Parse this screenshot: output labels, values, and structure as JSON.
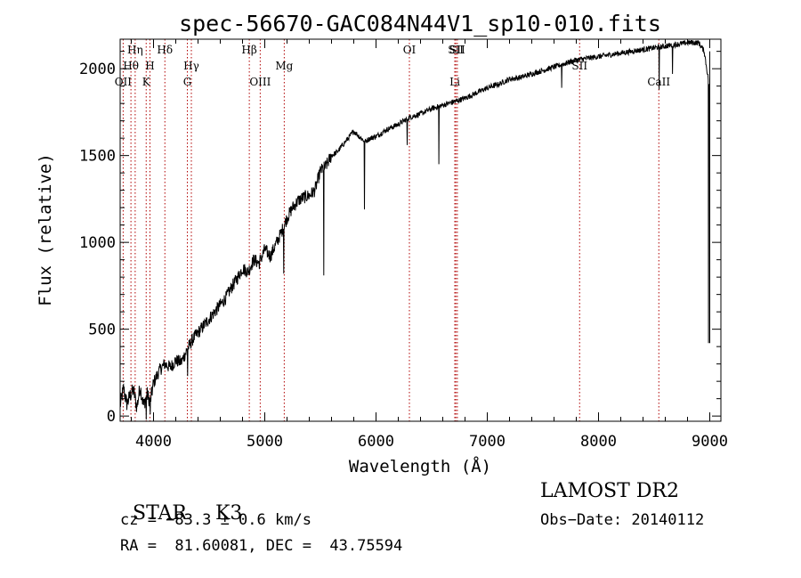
{
  "chart_data": {
    "type": "line",
    "title": "spec-56670-GAC084N44V1_sp10-010.fits",
    "xlabel": "Wavelength (Å)",
    "ylabel": "Flux (relative)",
    "xlim": [
      3700,
      9100
    ],
    "ylim": [
      -30,
      2170
    ],
    "xticks": [
      4000,
      5000,
      6000,
      7000,
      8000,
      9000
    ],
    "xtick_labels": [
      "4000",
      "5000",
      "6000",
      "7000",
      "8000",
      "9000"
    ],
    "yticks": [
      0,
      500,
      1000,
      1500,
      2000
    ],
    "ytick_labels": [
      "0",
      "500",
      "1000",
      "1500",
      "2000"
    ],
    "line_color": "#000000",
    "marker_color": "#b00000",
    "spectrum": {
      "x": [
        3700,
        3730,
        3760,
        3790,
        3820,
        3850,
        3880,
        3910,
        3940,
        3970,
        4000,
        4050,
        4100,
        4150,
        4200,
        4250,
        4300,
        4350,
        4400,
        4450,
        4500,
        4550,
        4600,
        4650,
        4700,
        4750,
        4800,
        4850,
        4900,
        4950,
        5000,
        5050,
        5100,
        5150,
        5200,
        5250,
        5300,
        5350,
        5400,
        5450,
        5500,
        5550,
        5600,
        5650,
        5700,
        5750,
        5800,
        5850,
        5900,
        5950,
        6000,
        6100,
        6200,
        6300,
        6400,
        6500,
        6600,
        6700,
        6800,
        6900,
        7000,
        7100,
        7200,
        7300,
        7400,
        7500,
        7600,
        7700,
        7800,
        7900,
        8000,
        8100,
        8200,
        8300,
        8400,
        8500,
        8600,
        8700,
        8800,
        8900,
        8950,
        9000
      ],
      "y": [
        60,
        160,
        70,
        120,
        150,
        50,
        170,
        60,
        130,
        80,
        190,
        260,
        300,
        280,
        320,
        310,
        380,
        440,
        480,
        520,
        560,
        600,
        640,
        680,
        740,
        790,
        850,
        830,
        900,
        880,
        960,
        920,
        990,
        1060,
        1140,
        1200,
        1240,
        1260,
        1270,
        1300,
        1410,
        1440,
        1500,
        1520,
        1560,
        1600,
        1640,
        1610,
        1580,
        1600,
        1610,
        1650,
        1680,
        1720,
        1740,
        1770,
        1790,
        1810,
        1830,
        1860,
        1890,
        1910,
        1940,
        1950,
        1970,
        1990,
        2010,
        2030,
        2050,
        2060,
        2070,
        2080,
        2090,
        2100,
        2110,
        2120,
        2130,
        2140,
        2150,
        2150,
        2100,
        1880
      ]
    },
    "absorption_dips": [
      {
        "x": 3935,
        "y": -20
      },
      {
        "x": 3970,
        "y": 10
      },
      {
        "x": 4305,
        "y": 230
      },
      {
        "x": 5170,
        "y": 820
      },
      {
        "x": 5530,
        "y": 810
      },
      {
        "x": 5895,
        "y": 1190
      },
      {
        "x": 6280,
        "y": 1560
      },
      {
        "x": 6565,
        "y": 1450
      },
      {
        "x": 7670,
        "y": 1890
      },
      {
        "x": 8545,
        "y": 1880
      },
      {
        "x": 8665,
        "y": 1970
      },
      {
        "x": 8990,
        "y": 420
      }
    ],
    "spectral_lines": [
      {
        "label": "Hη",
        "x": 3835,
        "row": 1
      },
      {
        "label": "Hθ",
        "x": 3797,
        "row": 2
      },
      {
        "label": "OII",
        "x": 3727,
        "row": 3
      },
      {
        "label": "H",
        "x": 3968,
        "row": 2
      },
      {
        "label": "K",
        "x": 3934,
        "row": 3
      },
      {
        "label": "Hδ",
        "x": 4102,
        "row": 1
      },
      {
        "label": "Hγ",
        "x": 4340,
        "row": 2
      },
      {
        "label": "G",
        "x": 4304,
        "row": 3
      },
      {
        "label": "Hβ",
        "x": 4861,
        "row": 1
      },
      {
        "label": "OIII",
        "x": 4959,
        "row": 3
      },
      {
        "label": "Mg",
        "x": 5175,
        "row": 2
      },
      {
        "label": "OI",
        "x": 6300,
        "row": 1
      },
      {
        "label": "SII",
        "x": 6717,
        "row": 1
      },
      {
        "label": "Li",
        "x": 6708,
        "row": 3
      },
      {
        "label": "SII",
        "x": 6731,
        "row": 0
      },
      {
        "label": "SII",
        "x": 7830,
        "row": 2
      },
      {
        "label": "CaII",
        "x": 8542,
        "row": 3
      }
    ]
  },
  "info": {
    "class_label": "STAR",
    "subclass": "K3",
    "survey": "LAMOST DR2",
    "redshift": "cz = −83.3 ± 0.6 km/s",
    "obs_date": "Obs−Date: 20140112",
    "coords": "RA =  81.60081, DEC =  43.75594"
  }
}
